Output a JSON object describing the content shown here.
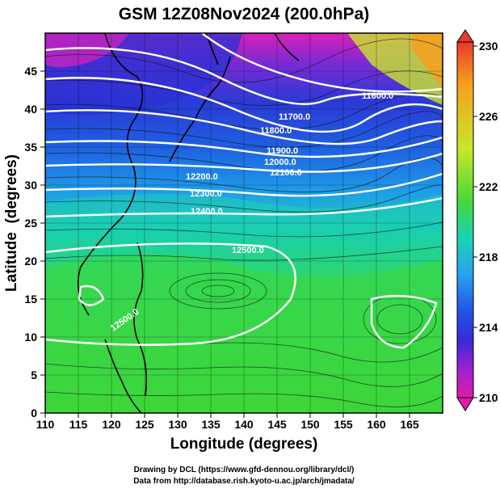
{
  "title": "GSM 12Z08Nov2024 (200.0hPa)",
  "xlabel": "Longitude (degrees)",
  "ylabel": "Latitude  (degrees)",
  "credits": [
    "Drawing by DCL (https://www.gfd-dennou.org/library/dcl/)",
    "Data from http://database.rish.kyoto-u.ac.jp/arch/jmadata/"
  ],
  "map_data": {
    "lon_range": [
      110,
      170
    ],
    "lat_range": [
      0,
      50
    ],
    "x_ticks": [
      "110",
      "115",
      "120",
      "125",
      "130",
      "135",
      "140",
      "145",
      "150",
      "155",
      "160",
      "165"
    ],
    "y_ticks": [
      "0",
      "5",
      "10",
      "15",
      "20",
      "25",
      "30",
      "35",
      "40",
      "45"
    ],
    "colorbar": {
      "min": 210,
      "max": 230,
      "labels": [
        "230",
        "226",
        "222",
        "218",
        "214",
        "210"
      ],
      "colors": [
        "#e83a2a",
        "#f6a11c",
        "#c7e72a",
        "#46d83a",
        "#19d2b4",
        "#2aa3ee",
        "#2152e4",
        "#3a2ad8",
        "#a020d0",
        "#e01ca8"
      ]
    },
    "contour_labels": [
      "11600.0",
      "11700.0",
      "11800.0",
      "11900.0",
      "12000.0",
      "12100.0",
      "12200.0",
      "12300.0",
      "12400.0",
      "12500.0",
      "12500.0"
    ]
  }
}
